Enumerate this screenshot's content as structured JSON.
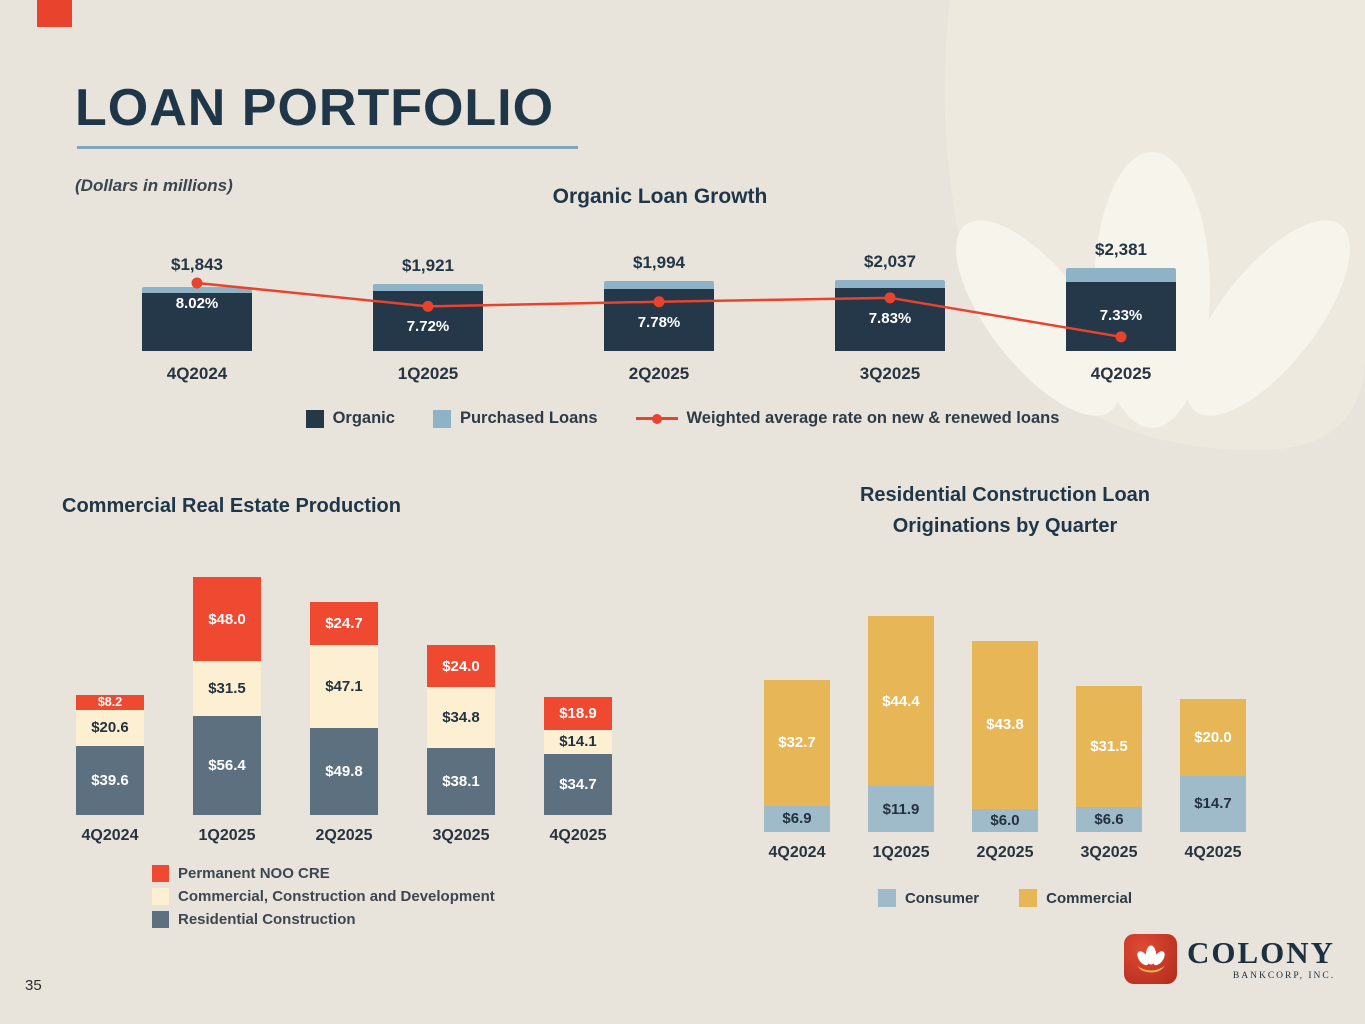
{
  "slide": {
    "title": "LOAN PORTFOLIO",
    "subtitle": "(Dollars in millions)",
    "page_number": "35"
  },
  "logo": {
    "name": "COLONY",
    "subtext": "BANKCORP, INC."
  },
  "colors": {
    "background": "#e9e4db",
    "navy": "#1e3648",
    "watermark_leaf": "#eee9df",
    "watermark_petal": "#f7f4ec"
  },
  "chart_data": [
    {
      "id": "organic_loan_growth",
      "type": "bar",
      "title": "Organic Loan Growth",
      "categories": [
        "4Q2024",
        "1Q2025",
        "2Q2025",
        "3Q2025",
        "4Q2025"
      ],
      "totals": [
        1843,
        1921,
        1994,
        2037,
        2381
      ],
      "total_labels": [
        "$1,843",
        "$1,921",
        "$1,994",
        "$2,037",
        "$2,381"
      ],
      "series": [
        {
          "name": "Organic",
          "color": "#24384a",
          "values": [
            1673,
            1721,
            1764,
            1807,
            1981
          ]
        },
        {
          "name": "Purchased Loans",
          "color": "#8eb3c6",
          "values": [
            170,
            200,
            230,
            230,
            400
          ]
        }
      ],
      "line_series": {
        "name": "Weighted average rate on new & renewed loans",
        "color": "#e8432d",
        "values": [
          8.02,
          7.72,
          7.78,
          7.83,
          7.33
        ],
        "labels": [
          "8.02%",
          "7.72%",
          "7.78%",
          "7.83%",
          "7.33%"
        ]
      },
      "legend": [
        "Organic",
        "Purchased Loans",
        "Weighted average rate on new & renewed loans"
      ]
    },
    {
      "id": "commercial_real_estate_production",
      "type": "stacked_bar",
      "title": "Commercial Real Estate Production",
      "categories": [
        "4Q2024",
        "1Q2025",
        "2Q2025",
        "3Q2025",
        "4Q2025"
      ],
      "series": [
        {
          "name": "Residential Construction",
          "color": "#5d7080",
          "label_color": "#ffffff",
          "values": [
            39.6,
            56.4,
            49.8,
            38.1,
            34.7
          ]
        },
        {
          "name": "Commercial, Construction and Development",
          "color": "#fdf0d2",
          "label_color": "#233240",
          "values": [
            20.6,
            31.5,
            47.1,
            34.8,
            14.1
          ]
        },
        {
          "name": "Permanent NOO CRE",
          "color": "#ef4a31",
          "label_color": "#ffffff",
          "values": [
            8.2,
            48.0,
            24.7,
            24.0,
            18.9
          ]
        }
      ],
      "legend": [
        "Permanent NOO CRE",
        "Commercial, Construction and Development",
        "Residential Construction"
      ]
    },
    {
      "id": "residential_construction_originations",
      "type": "stacked_bar",
      "title": "Residential Construction Loan Originations by Quarter",
      "title_lines": [
        "Residential Construction Loan",
        "Originations by Quarter"
      ],
      "categories": [
        "4Q2024",
        "1Q2025",
        "2Q2025",
        "3Q2025",
        "4Q2025"
      ],
      "series": [
        {
          "name": "Consumer",
          "color": "#9fbac9",
          "label_color": "#233240",
          "values": [
            6.9,
            11.9,
            6.0,
            6.6,
            14.7
          ]
        },
        {
          "name": "Commercial",
          "color": "#e7b757",
          "label_color": "#ffffff",
          "values": [
            32.7,
            44.4,
            43.8,
            31.5,
            20.0
          ]
        }
      ],
      "legend": [
        "Consumer",
        "Commercial"
      ]
    }
  ]
}
